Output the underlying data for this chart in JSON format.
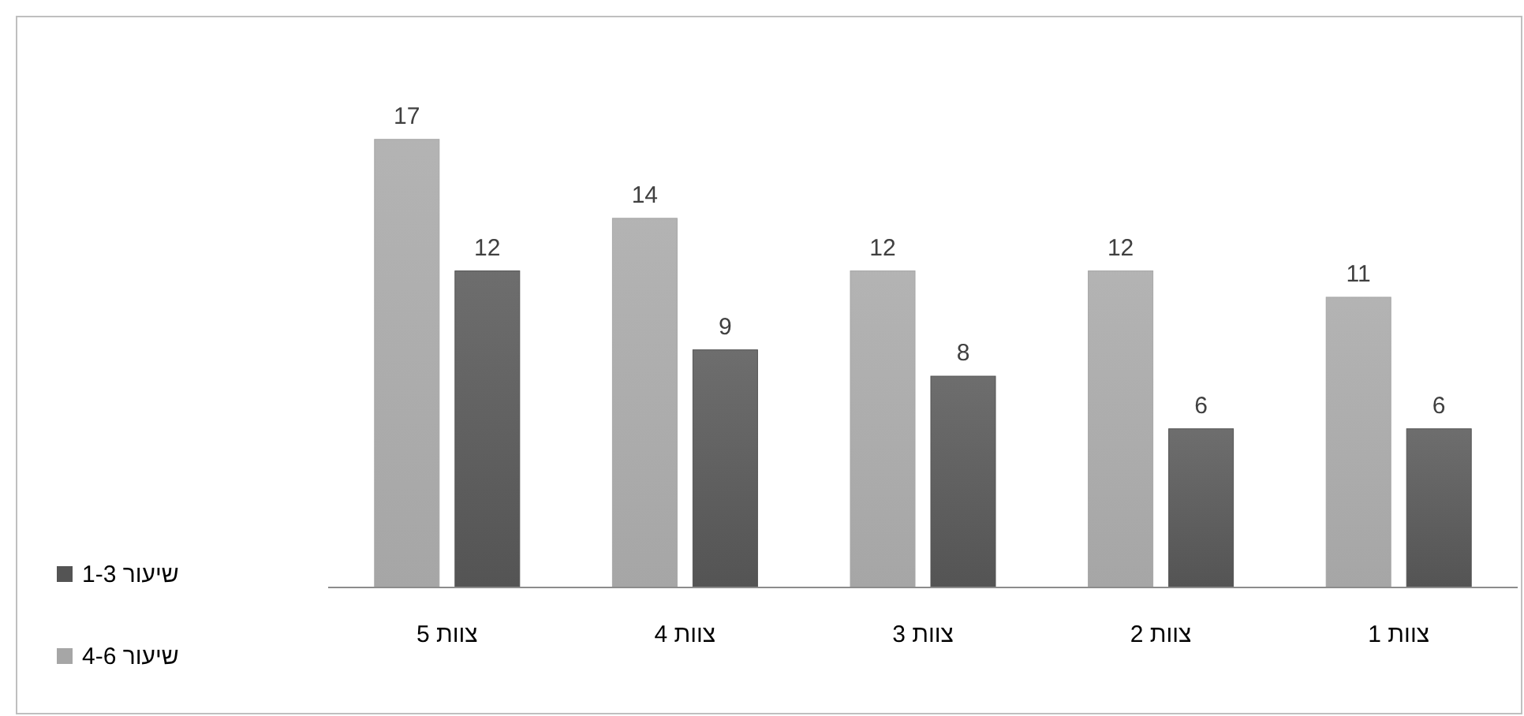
{
  "chart_data": {
    "type": "bar",
    "categories": [
      "צוות 5",
      "צוות 4",
      "צוות 3",
      "צוות 2",
      "צוות 1"
    ],
    "series": [
      {
        "name": "שיעור 4-6",
        "color": "#a6a6a6",
        "values": [
          17,
          14,
          12,
          12,
          11
        ]
      },
      {
        "name": "שיעור 1-3",
        "color": "#545454",
        "values": [
          12,
          9,
          8,
          6,
          6
        ]
      }
    ],
    "data_labels": true,
    "legend": "left"
  }
}
